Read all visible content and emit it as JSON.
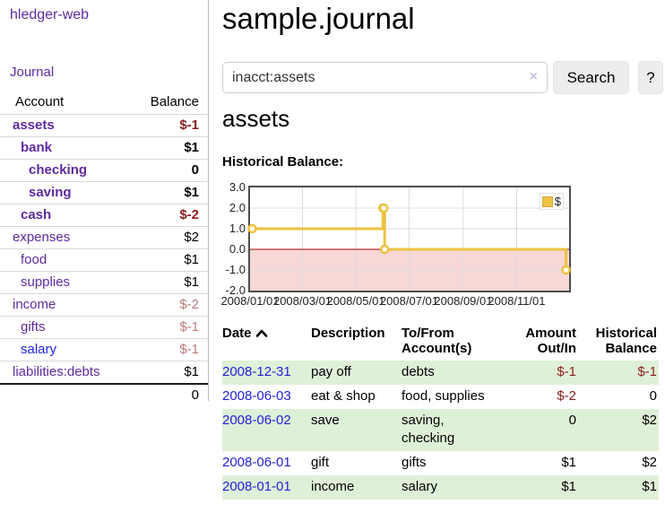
{
  "sidebar": {
    "brand": "hledger-web",
    "journal_link": "Journal",
    "accounts_table": {
      "headers": [
        "Account",
        "Balance"
      ],
      "rows": [
        {
          "name": "assets",
          "indent": 1,
          "bold": true,
          "link_color": "purple",
          "balance": "$-1",
          "balance_style": "neg-bold"
        },
        {
          "name": "bank",
          "indent": 2,
          "bold": true,
          "link_color": "purple",
          "balance": "$1",
          "balance_style": "pos-bold"
        },
        {
          "name": "checking",
          "indent": 3,
          "bold": true,
          "link_color": "purple",
          "balance": "0",
          "balance_style": "pos-bold"
        },
        {
          "name": "saving",
          "indent": 3,
          "bold": true,
          "link_color": "purple",
          "balance": "$1",
          "balance_style": "pos-bold"
        },
        {
          "name": "cash",
          "indent": 2,
          "bold": true,
          "link_color": "purple",
          "balance": "$-2",
          "balance_style": "neg-bold"
        },
        {
          "name": "expenses",
          "indent": 1,
          "bold": false,
          "link_color": "purple",
          "balance": "$2",
          "balance_style": ""
        },
        {
          "name": "food",
          "indent": 2,
          "bold": false,
          "link_color": "purple",
          "balance": "$1",
          "balance_style": ""
        },
        {
          "name": "supplies",
          "indent": 2,
          "bold": false,
          "link_color": "purple",
          "balance": "$1",
          "balance_style": ""
        },
        {
          "name": "income",
          "indent": 1,
          "bold": false,
          "link_color": "purple",
          "balance": "$-2",
          "balance_style": "neg-soft"
        },
        {
          "name": "gifts",
          "indent": 2,
          "bold": false,
          "link_color": "purple",
          "balance": "$-1",
          "balance_style": "neg-soft"
        },
        {
          "name": "salary",
          "indent": 2,
          "bold": false,
          "link_color": "blue",
          "balance": "$-1",
          "balance_style": "neg-soft"
        },
        {
          "name": "liabilities:debts",
          "indent": 1,
          "bold": false,
          "link_color": "purple",
          "balance": "$1",
          "balance_style": ""
        }
      ],
      "total": "0"
    }
  },
  "header": {
    "title": "sample.journal"
  },
  "search": {
    "value": "inacct:assets",
    "clear_icon": "×",
    "button": "Search",
    "help_button": "?"
  },
  "account_page": {
    "title": "assets",
    "chart_label": "Historical Balance:"
  },
  "chart_data": {
    "type": "line",
    "step": true,
    "title": "Historical Balance",
    "xlabel": "",
    "ylabel": "",
    "xlim": [
      "2008-01-01",
      "2008-12-31"
    ],
    "ylim": [
      -2.0,
      3.0
    ],
    "grid": true,
    "series": [
      {
        "name": "$",
        "color": "#edc240",
        "points": [
          [
            "2008-01-01",
            1
          ],
          [
            "2008-06-01",
            2
          ],
          [
            "2008-06-02",
            2
          ],
          [
            "2008-06-03",
            0
          ],
          [
            "2008-12-31",
            -1
          ]
        ]
      }
    ],
    "x_ticks": [
      {
        "pos": "2008-01-01",
        "label": "2008/01/01"
      },
      {
        "pos": "2008-03-01",
        "label": "2008/03/01"
      },
      {
        "pos": "2008-05-01",
        "label": "2008/05/01"
      },
      {
        "pos": "2008-07-01",
        "label": "2008/07/01"
      },
      {
        "pos": "2008-09-01",
        "label": "2008/09/01"
      },
      {
        "pos": "2008-11-01",
        "label": "2008/11/01"
      }
    ],
    "y_ticks": [
      {
        "v": 3.0,
        "label": "3.0"
      },
      {
        "v": 2.0,
        "label": "2.0"
      },
      {
        "v": 1.0,
        "label": "1.0"
      },
      {
        "v": 0.0,
        "label": "0.0"
      },
      {
        "v": -1.0,
        "label": "-1.0"
      },
      {
        "v": -2.0,
        "label": "-2.0"
      }
    ],
    "negative_fill": "#f8d7d7",
    "zero_line_color": "#a40000",
    "legend": {
      "label": "$",
      "position": "top-right"
    }
  },
  "register": {
    "headers": {
      "date": "Date",
      "description": "Description",
      "accounts": "To/From Account(s)",
      "amount": "Amount Out/In",
      "balance": "Historical Balance"
    },
    "rows": [
      {
        "date": "2008-12-31",
        "description": "pay off",
        "accounts": [
          "debts"
        ],
        "amount": "$-1",
        "amount_negative": true,
        "balance": "$-1",
        "balance_negative": true
      },
      {
        "date": "2008-06-03",
        "description": "eat & shop",
        "accounts": [
          "food, supplies"
        ],
        "amount": "$-2",
        "amount_negative": true,
        "balance": "0",
        "balance_negative": false
      },
      {
        "date": "2008-06-02",
        "description": "save",
        "accounts": [
          "saving,",
          "checking"
        ],
        "amount": "0",
        "amount_negative": false,
        "balance": "$2",
        "balance_negative": false
      },
      {
        "date": "2008-06-01",
        "description": "gift",
        "accounts": [
          "gifts"
        ],
        "amount": "$1",
        "amount_negative": false,
        "balance": "$2",
        "balance_negative": false
      },
      {
        "date": "2008-01-01",
        "description": "income",
        "accounts": [
          "salary"
        ],
        "amount": "$1",
        "amount_negative": false,
        "balance": "$1",
        "balance_negative": false
      }
    ]
  }
}
